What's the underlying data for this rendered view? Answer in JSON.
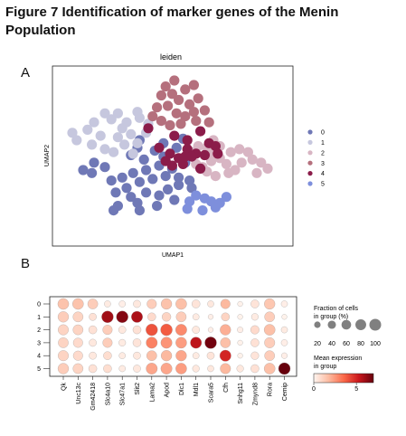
{
  "figure": {
    "title": "Figure 7  Identification of marker genes of the Menin Population",
    "panel_a_label": "A",
    "panel_b_label": "B"
  },
  "chart_data": [
    {
      "type": "scatter",
      "title": "leiden",
      "xlabel": "UMAP1",
      "ylabel": "UMAP2",
      "grid": false,
      "legend_placement": "right",
      "series": [
        {
          "name": "0",
          "color": "#6f78b6",
          "points": [
            [
              1,
              4
            ],
            [
              1.5,
              4.5
            ],
            [
              1.4,
              3.8
            ],
            [
              2,
              4.2
            ],
            [
              2.3,
              3.3
            ],
            [
              2.8,
              3.5
            ],
            [
              3.3,
              3.8
            ],
            [
              3.6,
              3.2
            ],
            [
              3.9,
              4
            ],
            [
              4.2,
              3.4
            ],
            [
              4.5,
              4.3
            ],
            [
              4.8,
              3.6
            ],
            [
              5.1,
              4.1
            ],
            [
              5.4,
              3.5
            ],
            [
              5.7,
              4.5
            ],
            [
              2.5,
              2.5
            ],
            [
              3,
              2.8
            ],
            [
              3.2,
              2.2
            ],
            [
              2.6,
              1.6
            ],
            [
              2.4,
              1.3
            ],
            [
              3.5,
              1.8
            ],
            [
              3.9,
              2.5
            ],
            [
              4.5,
              2.3
            ],
            [
              4.9,
              2.7
            ],
            [
              5.4,
              3
            ],
            [
              5.9,
              3.3
            ],
            [
              6,
              2.8
            ],
            [
              5.2,
              2
            ],
            [
              4.4,
              1.6
            ],
            [
              3.6,
              1.3
            ],
            [
              3.2,
              5
            ],
            [
              3.5,
              5.5
            ],
            [
              3.6,
              6
            ],
            [
              4.3,
              5.3
            ],
            [
              3.8,
              4.7
            ],
            [
              4.7,
              4.9
            ],
            [
              5.3,
              5.5
            ],
            [
              4.7,
              5.8
            ],
            [
              5.6,
              6.1
            ]
          ]
        },
        {
          "name": "1",
          "color": "#c6c7de",
          "points": [
            [
              0.5,
              6.5
            ],
            [
              0.7,
              6
            ],
            [
              1.2,
              6.7
            ],
            [
              1.5,
              7.2
            ],
            [
              1.8,
              6.3
            ],
            [
              2,
              7.8
            ],
            [
              2.3,
              7.4
            ],
            [
              2.6,
              7.8
            ],
            [
              1.4,
              5.7
            ],
            [
              2,
              5.4
            ],
            [
              2.4,
              5.2
            ],
            [
              2.6,
              6.2
            ],
            [
              2.8,
              6.8
            ],
            [
              3,
              7.2
            ],
            [
              3.2,
              6.4
            ],
            [
              3.5,
              5.8
            ],
            [
              3.3,
              5.1
            ],
            [
              3.9,
              6.5
            ],
            [
              3.5,
              7.9
            ],
            [
              4,
              7.1
            ],
            [
              3.6,
              7.5
            ],
            [
              2.9,
              5.7
            ]
          ]
        },
        {
          "name": "2",
          "color": "#d8b5c3",
          "points": [
            [
              6,
              5.2
            ],
            [
              6.3,
              5.6
            ],
            [
              6.7,
              5.5
            ],
            [
              7,
              6
            ],
            [
              6.8,
              5.1
            ],
            [
              7.3,
              5.6
            ],
            [
              6.2,
              4.4
            ],
            [
              6.5,
              4.2
            ],
            [
              6.9,
              4.6
            ],
            [
              7.3,
              4.8
            ],
            [
              7.6,
              4.4
            ],
            [
              7.8,
              5.2
            ],
            [
              8.2,
              5.4
            ],
            [
              8.6,
              5.2
            ],
            [
              8.8,
              4.7
            ],
            [
              9.2,
              4.5
            ],
            [
              8.3,
              4.5
            ],
            [
              7.7,
              3.8
            ],
            [
              8,
              4
            ],
            [
              7.1,
              3.6
            ],
            [
              6.7,
              3.9
            ],
            [
              9.5,
              4.1
            ],
            [
              9,
              3.8
            ]
          ]
        },
        {
          "name": "3",
          "color": "#b5707d",
          "points": [
            [
              4.8,
              9.6
            ],
            [
              5.2,
              10
            ],
            [
              4.6,
              9
            ],
            [
              5.1,
              9.1
            ],
            [
              5.7,
              9.4
            ],
            [
              6.1,
              9.7
            ],
            [
              5.4,
              8.7
            ],
            [
              5.9,
              8.4
            ],
            [
              6.3,
              8.8
            ],
            [
              4.4,
              8.2
            ],
            [
              4.9,
              8.3
            ],
            [
              5.3,
              7.8
            ],
            [
              5.7,
              7.6
            ],
            [
              6.1,
              7.9
            ],
            [
              6.6,
              8
            ],
            [
              4.6,
              7.3
            ],
            [
              5,
              7
            ],
            [
              5.5,
              7.1
            ],
            [
              6.2,
              7.3
            ],
            [
              6.8,
              7.2
            ],
            [
              4.2,
              7.6
            ]
          ]
        },
        {
          "name": "4",
          "color": "#8b1c4a",
          "points": [
            [
              4,
              6.8
            ],
            [
              5.2,
              6.3
            ],
            [
              5.8,
              6
            ],
            [
              6.4,
              6.6
            ],
            [
              6.2,
              5.1
            ],
            [
              6.8,
              5.8
            ],
            [
              4.5,
              5.5
            ],
            [
              5,
              5.1
            ],
            [
              5.4,
              4.8
            ],
            [
              5.8,
              5.4
            ],
            [
              6.6,
              5
            ],
            [
              7.1,
              5.6
            ],
            [
              7.2,
              5.1
            ],
            [
              5.1,
              4.3
            ],
            [
              5.6,
              4.4
            ],
            [
              6,
              4.9
            ],
            [
              6.4,
              4.1
            ],
            [
              4.8,
              4.6
            ],
            [
              5.7,
              4.9
            ]
          ]
        },
        {
          "name": "5",
          "color": "#7e8fdc",
          "points": [
            [
              6.2,
              2.3
            ],
            [
              6.6,
              2.1
            ],
            [
              6.9,
              1.9
            ],
            [
              7.3,
              1.8
            ],
            [
              7.6,
              2.2
            ],
            [
              6.5,
              1.3
            ],
            [
              7.1,
              1.5
            ],
            [
              5.9,
              1.9
            ],
            [
              5.8,
              1.4
            ]
          ]
        }
      ]
    },
    {
      "type": "heatmap",
      "subtype": "dotplot",
      "rows": [
        "0",
        "1",
        "2",
        "3",
        "4",
        "5"
      ],
      "genes": [
        "Qk",
        "Unc13c",
        "Gm42418",
        "Slc4a10",
        "Slc47a1",
        "Slit2",
        "Lama2",
        "Apod",
        "Dlc1",
        "Mdl1",
        "Scara5",
        "Cfh",
        "Snhg11",
        "Zmynd8",
        "Rora",
        "Cemip"
      ],
      "fraction": [
        [
          85,
          85,
          70,
          20,
          20,
          30,
          60,
          80,
          85,
          40,
          20,
          60,
          10,
          40,
          80,
          20
        ],
        [
          80,
          70,
          30,
          100,
          100,
          90,
          40,
          50,
          70,
          20,
          10,
          40,
          10,
          25,
          70,
          10
        ],
        [
          75,
          70,
          40,
          60,
          30,
          40,
          100,
          100,
          90,
          30,
          10,
          80,
          15,
          45,
          85,
          20
        ],
        [
          70,
          60,
          30,
          60,
          25,
          40,
          90,
          90,
          85,
          90,
          100,
          70,
          10,
          40,
          75,
          20
        ],
        [
          75,
          60,
          30,
          40,
          20,
          30,
          70,
          80,
          80,
          20,
          30,
          90,
          10,
          35,
          70,
          15
        ],
        [
          80,
          70,
          40,
          40,
          20,
          30,
          90,
          90,
          85,
          25,
          20,
          75,
          25,
          40,
          85,
          100
        ]
      ],
      "expression": [
        [
          1.5,
          1.5,
          1.2,
          0.3,
          0.2,
          0.4,
          1.2,
          1.5,
          1.6,
          0.5,
          0.4,
          1.8,
          0.1,
          0.5,
          1.4,
          0.2
        ],
        [
          1.2,
          1.0,
          0.6,
          6.0,
          6.5,
          5.8,
          0.8,
          1.0,
          1.2,
          0.3,
          0.2,
          1.0,
          0.1,
          0.3,
          1.2,
          0.1
        ],
        [
          1.0,
          1.0,
          0.6,
          1.2,
          0.4,
          0.6,
          4.0,
          3.8,
          2.8,
          0.4,
          0.2,
          2.0,
          0.2,
          0.8,
          1.6,
          0.3
        ],
        [
          1.0,
          0.8,
          0.4,
          1.2,
          0.3,
          0.5,
          3.0,
          2.6,
          2.4,
          5.5,
          6.8,
          1.6,
          0.1,
          0.6,
          1.2,
          0.2
        ],
        [
          1.0,
          0.8,
          0.4,
          0.7,
          0.3,
          0.4,
          1.6,
          1.8,
          2.2,
          0.3,
          0.5,
          5.0,
          0.1,
          0.5,
          1.2,
          0.2
        ],
        [
          1.2,
          1.0,
          0.6,
          0.7,
          0.3,
          0.4,
          2.2,
          2.2,
          2.4,
          0.4,
          0.4,
          1.8,
          0.4,
          0.6,
          1.6,
          7.0
        ]
      ],
      "size_legend": {
        "title": "Fraction of cells\nin group (%)",
        "ticks": [
          20,
          40,
          60,
          80,
          100
        ]
      },
      "color_legend": {
        "title": "Mean expression\nin group",
        "ticks": [
          0,
          5
        ],
        "range": [
          0,
          7
        ],
        "cmap": [
          "#fff5f0",
          "#fcbba1",
          "#fb6a4a",
          "#cb181d",
          "#67000d"
        ]
      }
    }
  ]
}
